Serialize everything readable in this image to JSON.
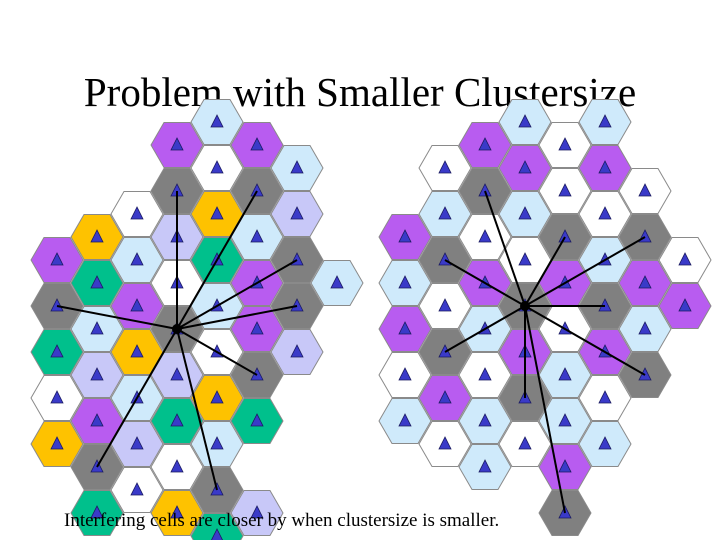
{
  "title": "Problem with Smaller Clustersize",
  "caption": "Interfering cells are closer by when clustersize is smaller.",
  "colors": {
    "white": "#ffffff",
    "gray": "#808080",
    "purple": "#b85cf0",
    "lightblue": "#cfeafb",
    "lavender": "#c8c8f8",
    "yellow": "#fec200",
    "teal": "#00c08c",
    "triangle": "#3a3ac8",
    "outline": "#8a8a8a"
  },
  "left_diagram": {
    "cells": [
      {
        "col": 0,
        "row": 2,
        "color": "white"
      },
      {
        "col": 0,
        "row": 3,
        "color": "lightblue"
      },
      {
        "col": 1,
        "row": 0,
        "color": "purple"
      },
      {
        "col": 1,
        "row": 1,
        "color": "gray"
      },
      {
        "col": 1,
        "row": 2,
        "color": "lavender"
      },
      {
        "col": 1,
        "row": 3,
        "color": "white"
      },
      {
        "col": 2,
        "row": 0,
        "color": "lightblue"
      },
      {
        "col": 2,
        "row": 1,
        "color": "white"
      },
      {
        "col": 2,
        "row": 2,
        "color": "yellow"
      },
      {
        "col": 2,
        "row": 3,
        "color": "teal"
      },
      {
        "col": 3,
        "row": 0,
        "color": "purple"
      },
      {
        "col": 3,
        "row": 1,
        "color": "gray"
      },
      {
        "col": 3,
        "row": 2,
        "color": "lightblue"
      },
      {
        "col": 3,
        "row": 3,
        "color": "purple"
      },
      {
        "col": 4,
        "row": 1,
        "color": "lightblue"
      },
      {
        "col": 4,
        "row": 2,
        "color": "lavender"
      },
      {
        "col": 4,
        "row": 3,
        "color": "gray"
      },
      {
        "col": 5,
        "row": 3,
        "color": "lightblue"
      },
      {
        "col": -2,
        "row": 3,
        "color": "purple"
      },
      {
        "col": -1,
        "row": 2,
        "color": "yellow"
      },
      {
        "col": -1,
        "row": 3,
        "color": "teal"
      },
      {
        "col": -2,
        "row": 4,
        "color": "gray"
      },
      {
        "col": -2,
        "row": 5,
        "color": "teal"
      },
      {
        "col": -1,
        "row": 4,
        "color": "lightblue"
      },
      {
        "col": -1,
        "row": 5,
        "color": "lavender"
      },
      {
        "col": 0,
        "row": 4,
        "color": "purple"
      },
      {
        "col": 0,
        "row": 5,
        "color": "yellow"
      },
      {
        "col": 1,
        "row": 4,
        "color": "gray"
      },
      {
        "col": 1,
        "row": 5,
        "color": "lavender"
      },
      {
        "col": 2,
        "row": 4,
        "color": "lightblue"
      },
      {
        "col": 2,
        "row": 5,
        "color": "white"
      },
      {
        "col": 3,
        "row": 4,
        "color": "purple"
      },
      {
        "col": 3,
        "row": 5,
        "color": "gray"
      },
      {
        "col": 4,
        "row": 4,
        "color": "gray"
      },
      {
        "col": 4,
        "row": 5,
        "color": "lavender"
      },
      {
        "col": -2,
        "row": 6,
        "color": "white"
      },
      {
        "col": -1,
        "row": 6,
        "color": "purple"
      },
      {
        "col": 0,
        "row": 6,
        "color": "lightblue"
      },
      {
        "col": 1,
        "row": 6,
        "color": "teal"
      },
      {
        "col": 2,
        "row": 6,
        "color": "yellow"
      },
      {
        "col": 3,
        "row": 6,
        "color": "teal"
      },
      {
        "col": -2,
        "row": 7,
        "color": "yellow"
      },
      {
        "col": -1,
        "row": 7,
        "color": "gray"
      },
      {
        "col": 0,
        "row": 7,
        "color": "lavender"
      },
      {
        "col": 1,
        "row": 7,
        "color": "white"
      },
      {
        "col": 2,
        "row": 7,
        "color": "lightblue"
      },
      {
        "col": -1,
        "row": 8,
        "color": "teal"
      },
      {
        "col": 0,
        "row": 8,
        "color": "white"
      },
      {
        "col": 1,
        "row": 8,
        "color": "yellow"
      },
      {
        "col": 2,
        "row": 8,
        "color": "gray"
      },
      {
        "col": 3,
        "row": 8,
        "color": "lavender"
      },
      {
        "col": 2,
        "row": 9,
        "color": "teal"
      }
    ],
    "center": {
      "col": 1,
      "row": 4
    }
  },
  "right_diagram": {
    "cells": [
      {
        "col": 1,
        "row": 0,
        "color": "purple"
      },
      {
        "col": 0,
        "row": 1,
        "color": "white"
      },
      {
        "col": 1,
        "row": 1,
        "color": "gray"
      },
      {
        "col": 2,
        "row": 0,
        "color": "lightblue"
      },
      {
        "col": 2,
        "row": 1,
        "color": "purple"
      },
      {
        "col": 3,
        "row": 0,
        "color": "white"
      },
      {
        "col": 3,
        "row": 1,
        "color": "white"
      },
      {
        "col": 4,
        "row": 0,
        "color": "lightblue"
      },
      {
        "col": 4,
        "row": 1,
        "color": "purple"
      },
      {
        "col": 5,
        "row": 1,
        "color": "white"
      },
      {
        "col": 0,
        "row": 2,
        "color": "lightblue"
      },
      {
        "col": -1,
        "row": 2,
        "color": "purple"
      },
      {
        "col": 1,
        "row": 2,
        "color": "white"
      },
      {
        "col": 2,
        "row": 2,
        "color": "lightblue"
      },
      {
        "col": 3,
        "row": 2,
        "color": "gray"
      },
      {
        "col": 4,
        "row": 2,
        "color": "white"
      },
      {
        "col": 5,
        "row": 2,
        "color": "gray"
      },
      {
        "col": -1,
        "row": 3,
        "color": "lightblue"
      },
      {
        "col": 0,
        "row": 3,
        "color": "gray"
      },
      {
        "col": 1,
        "row": 3,
        "color": "purple"
      },
      {
        "col": 2,
        "row": 3,
        "color": "white"
      },
      {
        "col": 3,
        "row": 3,
        "color": "purple"
      },
      {
        "col": 4,
        "row": 3,
        "color": "lightblue"
      },
      {
        "col": 5,
        "row": 3,
        "color": "purple"
      },
      {
        "col": 6,
        "row": 3,
        "color": "white"
      },
      {
        "col": -1,
        "row": 4,
        "color": "purple"
      },
      {
        "col": 0,
        "row": 4,
        "color": "white"
      },
      {
        "col": 1,
        "row": 4,
        "color": "lightblue"
      },
      {
        "col": 2,
        "row": 4,
        "color": "gray"
      },
      {
        "col": 3,
        "row": 4,
        "color": "white"
      },
      {
        "col": 4,
        "row": 4,
        "color": "gray"
      },
      {
        "col": 5,
        "row": 4,
        "color": "lightblue"
      },
      {
        "col": 6,
        "row": 4,
        "color": "purple"
      },
      {
        "col": -1,
        "row": 5,
        "color": "white"
      },
      {
        "col": 0,
        "row": 5,
        "color": "gray"
      },
      {
        "col": 1,
        "row": 5,
        "color": "white"
      },
      {
        "col": 2,
        "row": 5,
        "color": "purple"
      },
      {
        "col": 3,
        "row": 5,
        "color": "lightblue"
      },
      {
        "col": 4,
        "row": 5,
        "color": "purple"
      },
      {
        "col": 5,
        "row": 5,
        "color": "gray"
      },
      {
        "col": -1,
        "row": 6,
        "color": "lightblue"
      },
      {
        "col": 0,
        "row": 6,
        "color": "purple"
      },
      {
        "col": 1,
        "row": 6,
        "color": "lightblue"
      },
      {
        "col": 2,
        "row": 6,
        "color": "gray"
      },
      {
        "col": 3,
        "row": 6,
        "color": "lightblue"
      },
      {
        "col": 4,
        "row": 6,
        "color": "white"
      },
      {
        "col": 0,
        "row": 7,
        "color": "white"
      },
      {
        "col": 1,
        "row": 7,
        "color": "lightblue"
      },
      {
        "col": 2,
        "row": 7,
        "color": "white"
      },
      {
        "col": 3,
        "row": 7,
        "color": "purple"
      },
      {
        "col": 4,
        "row": 7,
        "color": "lightblue"
      },
      {
        "col": 3,
        "row": 8,
        "color": "gray"
      }
    ],
    "center": {
      "col": 2,
      "row": 4
    }
  }
}
